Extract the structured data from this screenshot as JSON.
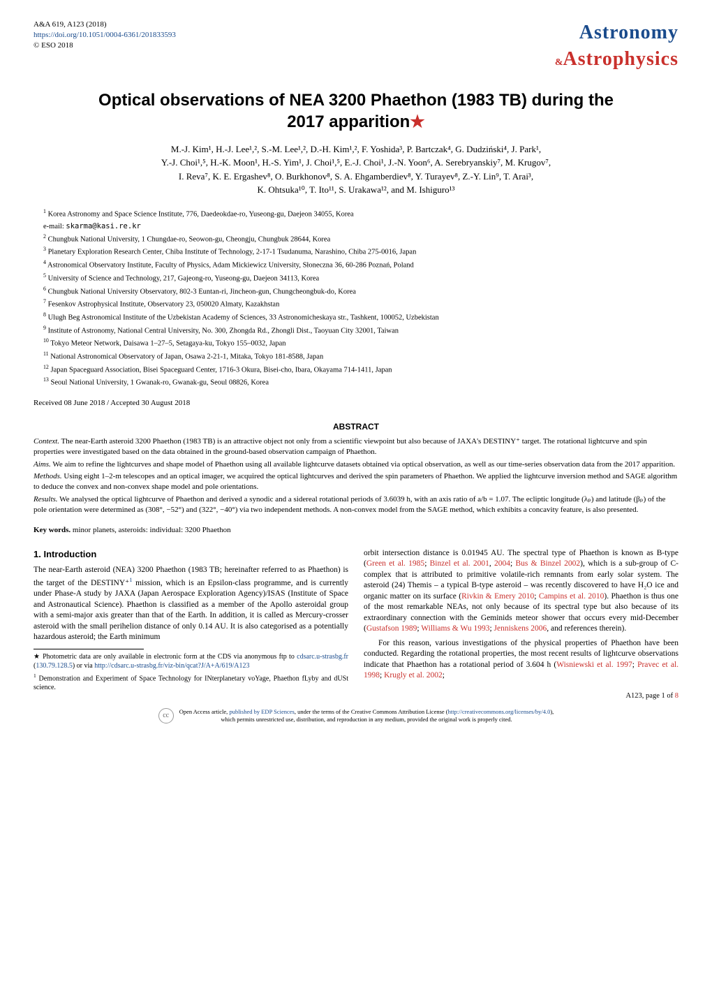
{
  "header": {
    "journal_ref": "A&A 619, A123 (2018)",
    "doi_url": "https://doi.org/10.1051/0004-6361/201833593",
    "copyright": "© ESO 2018",
    "logo_astronomy": "Astronomy",
    "logo_amp": "&",
    "logo_astrophysics": "Astrophysics",
    "logo_color_blue": "#1a4b8c",
    "logo_color_red": "#c9302c"
  },
  "title": {
    "line1": "Optical observations of NEA 3200 Phaethon (1983 TB) during the",
    "line2": "2017 apparition",
    "star": "★"
  },
  "authors": {
    "line1": "M.-J. Kim¹, H.-J. Lee¹,², S.-M. Lee¹,², D.-H. Kim¹,², F. Yoshida³, P. Bartczak⁴, G. Dudziński⁴, J. Park¹,",
    "line2": "Y.-J. Choi¹,⁵, H.-K. Moon¹, H.-S. Yim¹, J. Choi¹,⁵, E.-J. Choi¹, J.-N. Yoon⁶, A. Serebryanskiy⁷, M. Krugov⁷,",
    "line3": "I. Reva⁷, K. E. Ergashev⁸, O. Burkhonov⁸, S. A. Ehgamberdiev⁸, Y. Turayev⁸, Z.-Y. Lin⁹, T. Arai³,",
    "line4": "K. Ohtsuka¹⁰, T. Ito¹¹, S. Urakawa¹², and M. Ishiguro¹³"
  },
  "affiliations": {
    "a1_sup": "1",
    "a1": "Korea Astronomy and Space Science Institute, 776, Daedeokdae-ro, Yuseong-gu, Daejeon 34055, Korea",
    "a1_email_label": "e-mail:",
    "a1_email": "skarma@kasi.re.kr",
    "a2_sup": "2",
    "a2": "Chungbuk National University, 1 Chungdae-ro, Seowon-gu, Cheongju, Chungbuk 28644, Korea",
    "a3_sup": "3",
    "a3": "Planetary Exploration Research Center, Chiba Institute of Technology, 2-17-1 Tsudanuma, Narashino, Chiba 275-0016, Japan",
    "a4_sup": "4",
    "a4": "Astronomical Observatory Institute, Faculty of Physics, Adam Mickiewicz University, Słoneczna 36, 60-286 Poznań, Poland",
    "a5_sup": "5",
    "a5": "University of Science and Technology, 217, Gajeong-ro, Yuseong-gu, Daejeon 34113, Korea",
    "a6_sup": "6",
    "a6": "Chungbuk National University Observatory, 802-3 Euntan-ri, Jincheon-gun, Chungcheongbuk-do, Korea",
    "a7_sup": "7",
    "a7": "Fesenkov Astrophysical Institute, Observatory 23, 050020 Almaty, Kazakhstan",
    "a8_sup": "8",
    "a8": "Ulugh Beg Astronomical Institute of the Uzbekistan Academy of Sciences, 33 Astronomicheskaya str., Tashkent, 100052, Uzbekistan",
    "a9_sup": "9",
    "a9": "Institute of Astronomy, National Central University, No. 300, Zhongda Rd., Zhongli Dist., Taoyuan City 32001, Taiwan",
    "a10_sup": "10",
    "a10": "Tokyo Meteor Network, Daisawa 1–27–5, Setagaya-ku, Tokyo 155–0032, Japan",
    "a11_sup": "11",
    "a11": "National Astronomical Observatory of Japan, Osawa 2-21-1, Mitaka, Tokyo 181-8588, Japan",
    "a12_sup": "12",
    "a12": "Japan Spaceguard Association, Bisei Spaceguard Center, 1716-3 Okura, Bisei-cho, Ibara, Okayama 714-1411, Japan",
    "a13_sup": "13",
    "a13": "Seoul National University, 1 Gwanak-ro, Gwanak-gu, Seoul 08826, Korea"
  },
  "received": "Received 08 June 2018 / Accepted 30 August 2018",
  "abstract": {
    "heading": "ABSTRACT",
    "context_label": "Context.",
    "context": "The near-Earth asteroid 3200 Phaethon (1983 TB) is an attractive object not only from a scientific viewpoint but also because of JAXA's DESTINY⁺ target. The rotational lightcurve and spin properties were investigated based on the data obtained in the ground-based observation campaign of Phaethon.",
    "aims_label": "Aims.",
    "aims": "We aim to refine the lightcurves and shape model of Phaethon using all available lightcurve datasets obtained via optical observation, as well as our time-series observation data from the 2017 apparition.",
    "methods_label": "Methods.",
    "methods": "Using eight 1–2-m telescopes and an optical imager, we acquired the optical lightcurves and derived the spin parameters of Phaethon. We applied the lightcurve inversion method and SAGE algorithm to deduce the convex and non-convex shape model and pole orientations.",
    "results_label": "Results.",
    "results": "We analysed the optical lightcurve of Phaethon and derived a synodic and a sidereal rotational periods of 3.6039 h, with an axis ratio of a/b = 1.07. The ecliptic longitude (λₚ) and latitude (βₚ) of the pole orientation were determined as (308°, −52°) and (322°, −40°) via two independent methods. A non-convex model from the SAGE method, which exhibits a concavity feature, is also presented."
  },
  "keywords": {
    "label": "Key words.",
    "text": "minor planets, asteroids: individual: 3200 Phaethon"
  },
  "section1": {
    "heading": "1. Introduction",
    "left_p1a": "The near-Earth asteroid (NEA) 3200 Phaethon (1983 TB; hereinafter referred to as Phaethon) is the target of the DESTINY⁺",
    "left_p1_fnref": "1",
    "left_p1b": " mission, which is an Epsilon-class programme, and is currently under Phase-A study by JAXA (Japan Aerospace Exploration Agency)/ISAS (Institute of Space and Astronautical Science). Phaethon is classified as a member of the Apollo asteroidal group with a semi-major axis greater than that of the Earth. In addition, it is called as Mercury-crosser asteroid with the small perihelion distance of only 0.14 AU. It is also categorised as a potentially hazardous asteroid; the Earth minimum",
    "right_p1a": "orbit intersection distance is 0.01945 AU. The spectral type of Phaethon is known as B-type (",
    "right_p1_ref1": "Green et al. 1985",
    "right_p1_sep1": "; ",
    "right_p1_ref2": "Binzel et al. 2001",
    "right_p1_sep2": ", ",
    "right_p1_ref3": "2004",
    "right_p1_sep3": "; ",
    "right_p1_ref4": "Bus & Binzel 2002",
    "right_p1b": "), which is a sub-group of C-complex that is attributed to primitive volatile-rich remnants from early solar system. The asteroid (24) Themis – a typical B-type asteroid – was recently discovered to have H₂O ice and organic matter on its surface (",
    "right_p1_ref5": "Rivkin & Emery 2010",
    "right_p1_sep5": "; ",
    "right_p1_ref6": "Campins et al. 2010",
    "right_p1c": "). Phaethon is thus one of the most remarkable NEAs, not only because of its spectral type but also because of its extraordinary connection with the Geminids meteor shower that occurs every mid-December (",
    "right_p1_ref7": "Gustafson 1989",
    "right_p1_sep7": "; ",
    "right_p1_ref8": "Williams & Wu 1993",
    "right_p1_sep8": "; ",
    "right_p1_ref9": "Jenniskens 2006",
    "right_p1d": ", and references therein).",
    "right_p2a": "For this reason, various investigations of the physical properties of Phaethon have been conducted. Regarding the rotational properties, the most recent results of lightcurve observations indicate that Phaethon has a rotational period of 3.604 h (",
    "right_p2_ref1": "Wisniewski et al. 1997",
    "right_p2_sep1": "; ",
    "right_p2_ref2": "Pravec et al. 1998",
    "right_p2_sep2": "; ",
    "right_p2_ref3": "Krugly et al. 2002",
    "right_p2b": ";"
  },
  "footnotes": {
    "star": "★",
    "fn_star_a": " Photometric data are only available in electronic form at the CDS via anonymous ftp to ",
    "fn_star_link1": "cdsarc.u-strasbg.fr",
    "fn_star_mid": " (",
    "fn_star_link2": "130.79.128.5",
    "fn_star_b": ") or via ",
    "fn_star_link3": "http://cdsarc.u-strasbg.fr/viz-bin/qcat?J/A+A/619/A123",
    "fn1_sup": "1",
    "fn1": " Demonstration and Experiment of Space Technology for INterplanetary voYage, Phaethon fLyby and dUSt science."
  },
  "pagenum": {
    "label_a": "A123, page 1 of ",
    "label_b": "8"
  },
  "license": {
    "text_a": "Open Access article, ",
    "link1": "published by EDP Sciences",
    "text_b": ", under the terms of the Creative Commons Attribution License (",
    "link2": "http://creativecommons.org/licenses/by/4.0",
    "text_c": "),",
    "text_d": "which permits unrestricted use, distribution, and reproduction in any medium, provided the original work is properly cited."
  }
}
